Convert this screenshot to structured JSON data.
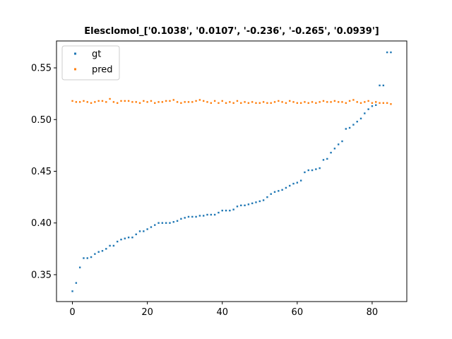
{
  "chart_data": {
    "type": "scatter",
    "title": "Elesclomol_['0.1038', '0.0107', '-0.236', '-0.265', '0.0939']",
    "xlabel": "",
    "ylabel": "",
    "xlim": [
      -4.25,
      89.25
    ],
    "ylim": [
      0.324,
      0.576
    ],
    "xticks": [
      0,
      20,
      40,
      60,
      80
    ],
    "xtick_labels": [
      "0",
      "20",
      "40",
      "60",
      "80"
    ],
    "yticks": [
      0.35,
      0.4,
      0.45,
      0.5,
      0.55
    ],
    "ytick_labels": [
      "0.35",
      "0.40",
      "0.45",
      "0.50",
      "0.55"
    ],
    "grid": false,
    "legend_position": "top-left",
    "series": [
      {
        "name": "gt",
        "color": "#1f77b4",
        "x": [
          0,
          1,
          2,
          3,
          4,
          5,
          6,
          7,
          8,
          9,
          10,
          11,
          12,
          13,
          14,
          15,
          16,
          17,
          18,
          19,
          20,
          21,
          22,
          23,
          24,
          25,
          26,
          27,
          28,
          29,
          30,
          31,
          32,
          33,
          34,
          35,
          36,
          37,
          38,
          39,
          40,
          41,
          42,
          43,
          44,
          45,
          46,
          47,
          48,
          49,
          50,
          51,
          52,
          53,
          54,
          55,
          56,
          57,
          58,
          59,
          60,
          61,
          62,
          63,
          64,
          65,
          66,
          67,
          68,
          69,
          70,
          71,
          72,
          73,
          74,
          75,
          76,
          77,
          78,
          79,
          80,
          81,
          82,
          83,
          84,
          85
        ],
        "y": [
          0.334,
          0.342,
          0.357,
          0.366,
          0.366,
          0.367,
          0.37,
          0.372,
          0.373,
          0.375,
          0.378,
          0.378,
          0.382,
          0.384,
          0.385,
          0.386,
          0.386,
          0.389,
          0.392,
          0.392,
          0.394,
          0.396,
          0.398,
          0.4,
          0.4,
          0.4,
          0.4,
          0.401,
          0.402,
          0.404,
          0.405,
          0.406,
          0.406,
          0.406,
          0.407,
          0.407,
          0.408,
          0.408,
          0.408,
          0.41,
          0.412,
          0.412,
          0.412,
          0.413,
          0.416,
          0.417,
          0.417,
          0.418,
          0.419,
          0.42,
          0.421,
          0.422,
          0.425,
          0.428,
          0.43,
          0.431,
          0.432,
          0.434,
          0.436,
          0.438,
          0.439,
          0.441,
          0.449,
          0.451,
          0.451,
          0.452,
          0.453,
          0.461,
          0.462,
          0.468,
          0.472,
          0.476,
          0.479,
          0.491,
          0.492,
          0.495,
          0.498,
          0.501,
          0.506,
          0.51,
          0.513,
          0.514,
          0.533,
          0.533,
          0.565,
          0.565
        ]
      },
      {
        "name": "pred",
        "color": "#ff7f0e",
        "x": [
          0,
          1,
          2,
          3,
          4,
          5,
          6,
          7,
          8,
          9,
          10,
          11,
          12,
          13,
          14,
          15,
          16,
          17,
          18,
          19,
          20,
          21,
          22,
          23,
          24,
          25,
          26,
          27,
          28,
          29,
          30,
          31,
          32,
          33,
          34,
          35,
          36,
          37,
          38,
          39,
          40,
          41,
          42,
          43,
          44,
          45,
          46,
          47,
          48,
          49,
          50,
          51,
          52,
          53,
          54,
          55,
          56,
          57,
          58,
          59,
          60,
          61,
          62,
          63,
          64,
          65,
          66,
          67,
          68,
          69,
          70,
          71,
          72,
          73,
          74,
          75,
          76,
          77,
          78,
          79,
          80,
          81,
          82,
          83,
          84,
          85
        ],
        "y": [
          0.518,
          0.517,
          0.517,
          0.518,
          0.517,
          0.516,
          0.517,
          0.518,
          0.518,
          0.517,
          0.52,
          0.517,
          0.516,
          0.518,
          0.518,
          0.518,
          0.517,
          0.517,
          0.516,
          0.518,
          0.517,
          0.518,
          0.516,
          0.517,
          0.517,
          0.518,
          0.518,
          0.519,
          0.517,
          0.516,
          0.517,
          0.517,
          0.517,
          0.518,
          0.519,
          0.518,
          0.517,
          0.516,
          0.518,
          0.516,
          0.518,
          0.516,
          0.517,
          0.516,
          0.518,
          0.516,
          0.517,
          0.516,
          0.517,
          0.516,
          0.516,
          0.517,
          0.516,
          0.516,
          0.517,
          0.518,
          0.517,
          0.516,
          0.518,
          0.517,
          0.516,
          0.516,
          0.517,
          0.516,
          0.517,
          0.516,
          0.517,
          0.518,
          0.517,
          0.517,
          0.518,
          0.517,
          0.517,
          0.516,
          0.518,
          0.519,
          0.517,
          0.516,
          0.517,
          0.518,
          0.516,
          0.517,
          0.516,
          0.516,
          0.516,
          0.515
        ]
      }
    ]
  }
}
